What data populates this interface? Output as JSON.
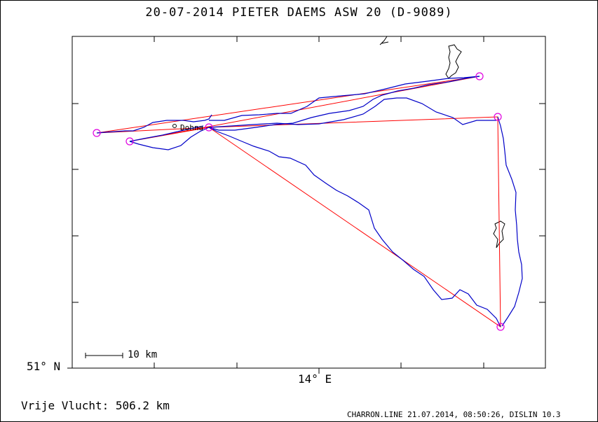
{
  "header": {
    "title": "20-07-2014   PIETER DAEMS   ASW 20 (D-9089)"
  },
  "axes": {
    "lat_label": "51° N",
    "lon_label": "14° E"
  },
  "scale_bar": {
    "label": "10 km"
  },
  "map": {
    "town_label": "Dohna",
    "colors": {
      "track": "#0000c8",
      "task_line": "#ff0000",
      "turnpoint": "#e000e0",
      "frame": "#000000"
    }
  },
  "footer": {
    "distance_text": "Vrije Vlucht:  506.2 km",
    "program_info": "CHARRON.LINE 21.07.2014, 08:50:26, DISLIN 10.3"
  }
}
